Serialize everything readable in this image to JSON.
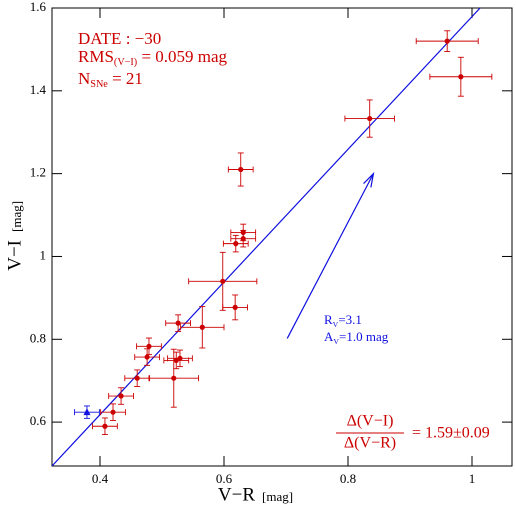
{
  "chart_data": {
    "type": "scatter",
    "x_label": "V−R",
    "x_label_unit": "[mag]",
    "y_label": "V−I",
    "y_label_unit": "[mag]",
    "xlim": [
      0.3226,
      1.0645
    ],
    "ylim": [
      0.494,
      1.6
    ],
    "xticks": [
      0.4,
      0.6,
      0.8,
      1
    ],
    "yticks": [
      0.6,
      0.8,
      1,
      1.2,
      1.4,
      1.6
    ],
    "series": [
      {
        "color": "#cc0000",
        "marker": "circle",
        "x": [
          0.96,
          0.982,
          0.835,
          0.627,
          0.631,
          0.631,
          0.619,
          0.598,
          0.618,
          0.565,
          0.526,
          0.479,
          0.476,
          0.529,
          0.523,
          0.519,
          0.46,
          0.434,
          0.421,
          0.408
        ],
        "values": [
          1.52,
          1.434,
          1.333,
          1.21,
          1.058,
          1.043,
          1.031,
          0.94,
          0.877,
          0.829,
          0.839,
          0.783,
          0.757,
          0.754,
          0.749,
          0.706,
          0.706,
          0.663,
          0.624,
          0.59
        ],
        "xerr": [
          0.05,
          0.05,
          0.04,
          0.02,
          0.02,
          0.02,
          0.02,
          0.055,
          0.02,
          0.035,
          0.02,
          0.02,
          0.02,
          0.02,
          0.02,
          0.04,
          0.02,
          0.02,
          0.02,
          0.02
        ],
        "yerr": [
          0.025,
          0.047,
          0.045,
          0.04,
          0.02,
          0.02,
          0.02,
          0.07,
          0.03,
          0.05,
          0.02,
          0.02,
          0.02,
          0.02,
          0.02,
          0.07,
          0.02,
          0.02,
          0.02,
          0.02
        ]
      },
      {
        "color": "#1010e0",
        "marker": "triangle",
        "x": [
          0.379
        ],
        "values": [
          0.624
        ],
        "xerr": [
          0.02
        ],
        "yerr": [
          0.015
        ]
      }
    ],
    "fit_line": {
      "color": "#1010e0",
      "x": [
        0.3226,
        1.013
      ],
      "y": [
        0.494,
        1.6
      ]
    },
    "arrow": {
      "color": "#1010e0",
      "x": [
        0.702,
        0.841
      ],
      "y": [
        0.802,
        1.2
      ],
      "label_1": {
        "main": "R",
        "sub": "V",
        "rest": "=3.1"
      },
      "label_2": {
        "main": "A",
        "sub": "V",
        "rest": "=1.0 mag"
      }
    },
    "annotations": {
      "date": "DATE : −30",
      "rms": {
        "main": "RMS",
        "sub": "(V−I)",
        "rest": " = 0.059 mag"
      },
      "nsne": {
        "main": "N",
        "sub": "SNe",
        "rest": " = 21"
      },
      "slope": {
        "numerator": "Δ(V−I)",
        "denominator": "Δ(V−R)",
        "rest": "= 1.59±0.09"
      }
    }
  }
}
